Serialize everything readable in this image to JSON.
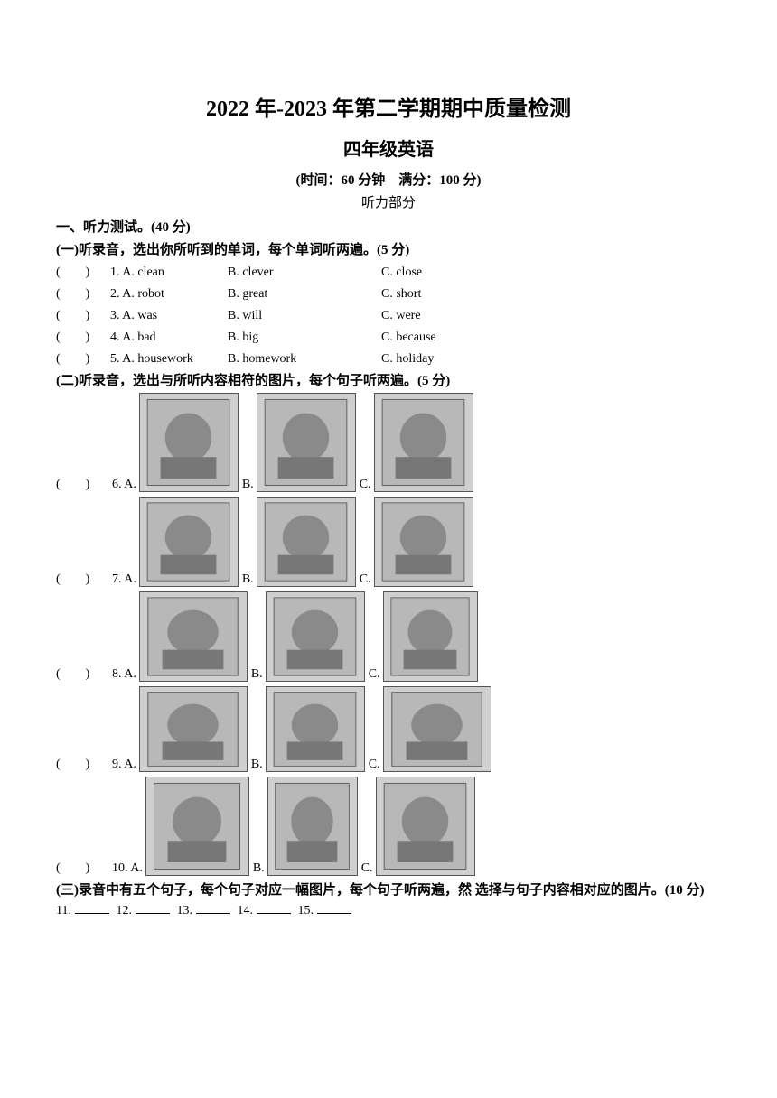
{
  "titles": {
    "main": "2022 年-2023 年第二学期期中质量检测",
    "sub": "四年级英语",
    "meta": "(时间：60 分钟　满分：100 分)",
    "part": "听力部分"
  },
  "section1_heading": "一、听力测试。(40 分)",
  "sub1_heading": "(一)听录音，选出你所听到的单词，每个单词听两遍。(5 分)",
  "paren_text": "(　　)",
  "mcq": [
    {
      "num": " 1. A. ",
      "a": "clean",
      "b": "B. clever",
      "c": "C. close"
    },
    {
      "num": " 2. A. ",
      "a": "robot",
      "b": "B. great",
      "c": "C. short"
    },
    {
      "num": " 3. A. ",
      "a": "was",
      "b": "B. will",
      "c": "C. were"
    },
    {
      "num": " 4. A. ",
      "a": "bad",
      "b": "B. big",
      "c": "C. because"
    },
    {
      "num": " 5. A. ",
      "a": "housework",
      "b": "B. homework",
      "c": "C. holiday"
    }
  ],
  "sub2_heading": "(二)听录音，选出与所听内容相符的图片，每个句子听两遍。(5 分)",
  "imgrows": [
    {
      "num": " 6. A.",
      "sizes": [
        [
          110,
          110
        ],
        [
          110,
          110
        ],
        [
          110,
          110
        ]
      ]
    },
    {
      "num": " 7. A.",
      "sizes": [
        [
          110,
          100
        ],
        [
          110,
          100
        ],
        [
          110,
          100
        ]
      ]
    },
    {
      "num": " 8. A.",
      "sizes": [
        [
          120,
          100
        ],
        [
          110,
          100
        ],
        [
          105,
          100
        ]
      ]
    },
    {
      "num": " 9. A.",
      "sizes": [
        [
          120,
          95
        ],
        [
          110,
          95
        ],
        [
          120,
          95
        ]
      ]
    },
    {
      "num": " 10. A.",
      "sizes": [
        [
          115,
          110
        ],
        [
          100,
          110
        ],
        [
          110,
          110
        ]
      ]
    }
  ],
  "labelsBC": {
    "b": "B.",
    "c": "C."
  },
  "sub3_heading": "(三)录音中有五个句子，每个句子对应一幅图片，每个句子听两遍，然 选择与句子内容相对应的图片。(10 分)",
  "blanks_row": {
    "items": [
      "11.",
      "12.",
      "13.",
      "14.",
      "15."
    ]
  }
}
